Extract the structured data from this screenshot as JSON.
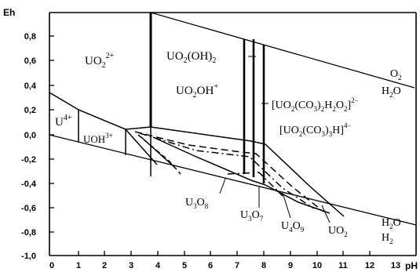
{
  "axes": {
    "y_title": "Eh",
    "x_title": "pH",
    "y_ticks": [
      "0,8",
      "0,6",
      "0,4",
      "0,2",
      "0,0",
      "-0,2",
      "-0,4",
      "-0,6",
      "-0,8",
      "-1,0"
    ],
    "x_ticks": [
      "0",
      "1",
      "2",
      "3",
      "4",
      "5",
      "6",
      "7",
      "8",
      "9",
      "10",
      "11",
      "12",
      "13"
    ]
  },
  "labels": {
    "uo2_2plus": {
      "base": "UO",
      "sub": "2",
      "sup": "2+"
    },
    "uo2oh2": {
      "a": "UO",
      "s1": "2",
      "b": "(OH)",
      "s2": "2"
    },
    "uo2oh_plus": {
      "a": "UO",
      "s1": "2",
      "b": "OH",
      "sup": "+"
    },
    "carb_a": {
      "a": "[UO",
      "s1": "2",
      "b": "(CO",
      "s2": "3",
      "c": ")",
      "s3": "2",
      "d": "H",
      "s4": "2",
      "e": "O",
      "s5": "2",
      "f": "]",
      "sup": "2−"
    },
    "carb_b": {
      "a": "[UO",
      "s1": "2",
      "b": "(CO",
      "s2": "3",
      "c": ")",
      "s3": "3",
      "d": "H]",
      "sup": "4−"
    },
    "u4plus": {
      "base": "U",
      "sup": "4+"
    },
    "uoh3plus": {
      "base": "UOH",
      "sup": "3+"
    },
    "u3o8": {
      "a": "U",
      "s1": "3",
      "b": "O",
      "s2": "8"
    },
    "u3o7": {
      "a": "U",
      "s1": "3",
      "b": "O",
      "s2": "7"
    },
    "u4o9": {
      "a": "U",
      "s1": "4",
      "b": "O",
      "s2": "9"
    },
    "uo2": {
      "a": "UO",
      "s1": "2"
    },
    "o2": {
      "a": "O",
      "s1": "2"
    },
    "h2o_top": {
      "a": "H",
      "s1": "2",
      "b": "O"
    },
    "h2o_bot": {
      "a": "H",
      "s1": "2",
      "b": "O"
    },
    "h2": {
      "a": "H",
      "s1": "2"
    }
  }
}
